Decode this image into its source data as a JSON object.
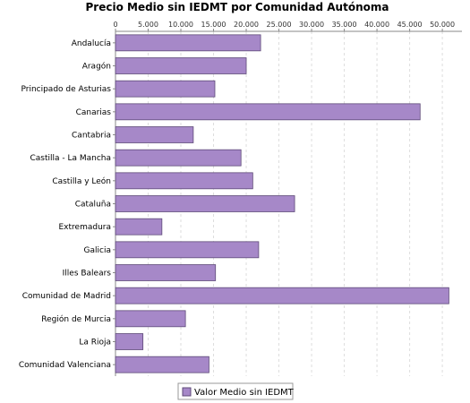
{
  "chart_data": {
    "type": "bar",
    "orientation": "horizontal",
    "title": "Precio Medio sin IEDMT por Comunidad Autónoma",
    "categories": [
      "Andalucía",
      "Aragón",
      "Principado de Asturias",
      "Canarias",
      "Cantabria",
      "Castilla - La Mancha",
      "Castilla y León",
      "Cataluña",
      "Extremadura",
      "Galicia",
      "Illes Balears",
      "Comunidad de Madrid",
      "Región de Murcia",
      "La Rioja",
      "Comunidad Valenciana"
    ],
    "series": [
      {
        "name": "Valor Medio sin IEDMT",
        "values": [
          22200,
          20000,
          15200,
          46600,
          11900,
          19200,
          21000,
          27400,
          7100,
          21900,
          15300,
          51000,
          10700,
          4200,
          14300
        ]
      }
    ],
    "xlim": [
      0,
      53000
    ],
    "xticks": [
      "0",
      "5.000",
      "10.000",
      "15.000",
      "20.000",
      "25.000",
      "30.000",
      "35.000",
      "40.000",
      "45.000",
      "50.000"
    ],
    "xtick_values": [
      0,
      5000,
      10000,
      15000,
      20000,
      25000,
      30000,
      35000,
      40000,
      45000,
      50000
    ],
    "grid": true,
    "axis_position": "top",
    "legend_position": "bottom",
    "colors": {
      "bar_fill": "#a688c8",
      "bar_stroke": "#5e4a78",
      "grid": "#dddddd",
      "axis": "#888888"
    }
  }
}
